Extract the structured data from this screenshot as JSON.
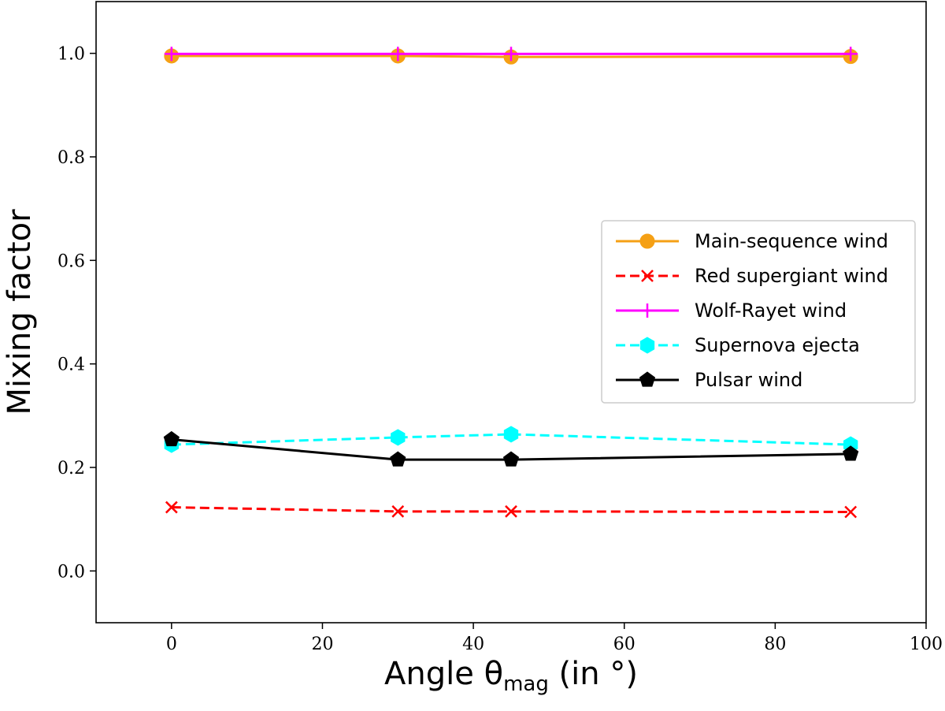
{
  "chart_data": {
    "type": "line",
    "xlabel": "Angle θ",
    "xlabel_subscript": "mag",
    "xlabel_suffix": " (in °)",
    "ylabel": "Mixing factor",
    "xlim": [
      -10,
      100
    ],
    "ylim": [
      -0.1,
      1.1
    ],
    "xticks": [
      0,
      20,
      40,
      60,
      80,
      100
    ],
    "yticks": [
      0.0,
      0.2,
      0.4,
      0.6,
      0.8,
      1.0
    ],
    "xtick_labels": [
      "0",
      "20",
      "40",
      "60",
      "80",
      "100"
    ],
    "ytick_labels": [
      "0.0",
      "0.2",
      "0.4",
      "0.6",
      "0.8",
      "1.0"
    ],
    "grid": false,
    "legend_position": "center-right",
    "x": [
      0,
      30,
      45,
      90
    ],
    "series": [
      {
        "name": "Main-sequence wind",
        "values": [
          0.995,
          0.995,
          0.993,
          0.994
        ],
        "color": "#f5a015",
        "marker": "circle",
        "dash": "solid"
      },
      {
        "name": "Red supergiant wind",
        "values": [
          0.123,
          0.115,
          0.115,
          0.114
        ],
        "color": "#ff0000",
        "marker": "x",
        "dash": "dashed"
      },
      {
        "name": "Wolf-Rayet wind",
        "values": [
          0.999,
          0.999,
          0.999,
          0.999
        ],
        "color": "#ff00ff",
        "marker": "plus",
        "dash": "solid"
      },
      {
        "name": "Supernova ejecta",
        "values": [
          0.244,
          0.258,
          0.264,
          0.244
        ],
        "color": "#00ffff",
        "marker": "hexagon",
        "dash": "dashed"
      },
      {
        "name": "Pulsar wind",
        "values": [
          0.254,
          0.215,
          0.215,
          0.226
        ],
        "color": "#000000",
        "marker": "pentagon",
        "dash": "solid"
      }
    ]
  }
}
